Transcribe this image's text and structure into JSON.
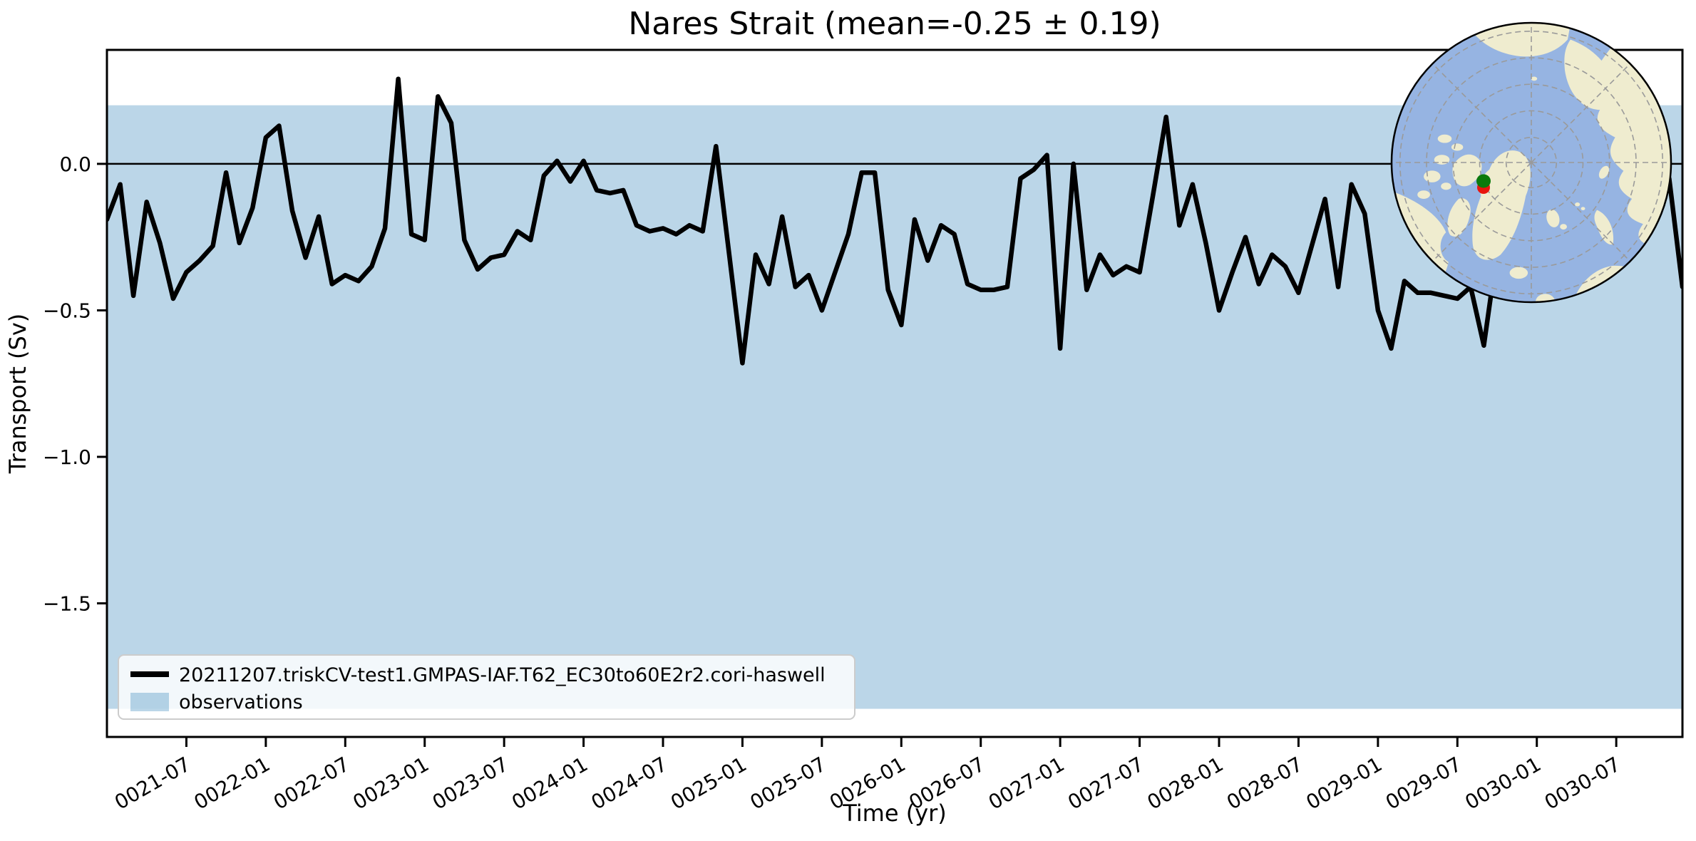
{
  "figure": {
    "background": "#ffffff",
    "title": "Nares Strait (mean=-0.25 ± 0.19)"
  },
  "chart_data": {
    "type": "line",
    "title": "Nares Strait (mean=-0.25 ± 0.19)",
    "xlabel": "Time (yr)",
    "ylabel": "Transport (Sv)",
    "x_start": "0021-01",
    "x_step": "1 month",
    "n_points": 120,
    "xlim_months": [
      0,
      119
    ],
    "ylim": [
      -1.956,
      0.389
    ],
    "grid": false,
    "zero_line": 0.0,
    "x_tick_months": [
      6,
      12,
      18,
      24,
      30,
      36,
      42,
      48,
      54,
      60,
      66,
      72,
      78,
      84,
      90,
      96,
      102,
      108,
      114
    ],
    "x_tick_labels": [
      "0021-07",
      "0022-01",
      "0022-07",
      "0023-01",
      "0023-07",
      "0024-01",
      "0024-07",
      "0025-01",
      "0025-07",
      "0026-01",
      "0026-07",
      "0027-01",
      "0027-07",
      "0028-01",
      "0028-07",
      "0029-01",
      "0029-07",
      "0030-01",
      "0030-07"
    ],
    "y_ticks": [
      {
        "value": 0.0,
        "label": "0.0"
      },
      {
        "value": -0.5,
        "label": "−0.5"
      },
      {
        "value": -1.0,
        "label": "−1.0"
      },
      {
        "value": -1.5,
        "label": "−1.5"
      }
    ],
    "series": [
      {
        "name": "20211207.triskCV-test1.GMPAS-IAF.T62_EC30to60E2r2.cori-haswell",
        "color": "#000000",
        "linewidth": 6.5,
        "values": [
          -0.19,
          -0.07,
          -0.45,
          -0.13,
          -0.27,
          -0.46,
          -0.37,
          -0.33,
          -0.28,
          -0.03,
          -0.27,
          -0.15,
          0.09,
          0.13,
          -0.16,
          -0.32,
          -0.18,
          -0.41,
          -0.38,
          -0.4,
          -0.35,
          -0.22,
          0.29,
          -0.24,
          -0.26,
          0.23,
          0.14,
          -0.26,
          -0.36,
          -0.32,
          -0.31,
          -0.23,
          -0.26,
          -0.04,
          0.01,
          -0.06,
          0.01,
          -0.09,
          -0.1,
          -0.09,
          -0.21,
          -0.23,
          -0.22,
          -0.24,
          -0.21,
          -0.23,
          0.06,
          -0.31,
          -0.68,
          -0.31,
          -0.41,
          -0.18,
          -0.42,
          -0.38,
          -0.5,
          -0.37,
          -0.24,
          -0.03,
          -0.03,
          -0.43,
          -0.55,
          -0.19,
          -0.33,
          -0.21,
          -0.24,
          -0.41,
          -0.43,
          -0.43,
          -0.42,
          -0.05,
          -0.02,
          0.03,
          -0.63,
          0.0,
          -0.43,
          -0.31,
          -0.38,
          -0.35,
          -0.37,
          -0.11,
          0.16,
          -0.21,
          -0.07,
          -0.27,
          -0.5,
          -0.37,
          -0.25,
          -0.41,
          -0.31,
          -0.35,
          -0.44,
          -0.28,
          -0.12,
          -0.42,
          -0.07,
          -0.17,
          -0.5,
          -0.63,
          -0.4,
          -0.44,
          -0.44,
          -0.45,
          -0.46,
          -0.42,
          -0.62,
          -0.3,
          -0.35,
          -0.28,
          -0.32,
          -0.25,
          -0.3,
          -0.22,
          -0.26,
          -0.2,
          -0.24,
          -0.18,
          -0.12,
          -0.08,
          -0.05,
          -0.42
        ]
      }
    ],
    "observations_band": {
      "label": "observations",
      "ymin": -1.86,
      "ymax": 0.2,
      "color": "rgba(31,119,180,0.30)"
    },
    "legend_position": "lower left"
  },
  "legend": {
    "entries": [
      {
        "swatch": "line",
        "label": "20211207.triskCV-test1.GMPAS-IAF.T62_EC30to60E2r2.cori-haswell",
        "color": "#000000"
      },
      {
        "swatch": "patch",
        "label": "observations",
        "color": "rgba(31,119,180,0.30)"
      }
    ]
  },
  "inset_map": {
    "description": "north polar orthographic map with transect location markers",
    "ocean_color": "#96b4e2",
    "land_color": "#efeccf",
    "gridline_color": "#9a9a9a",
    "border_color": "#000000",
    "markers": [
      {
        "name": "transect-marker-green",
        "color": "#0b7a0b"
      },
      {
        "name": "transect-marker-red",
        "color": "#e8150d"
      }
    ]
  }
}
